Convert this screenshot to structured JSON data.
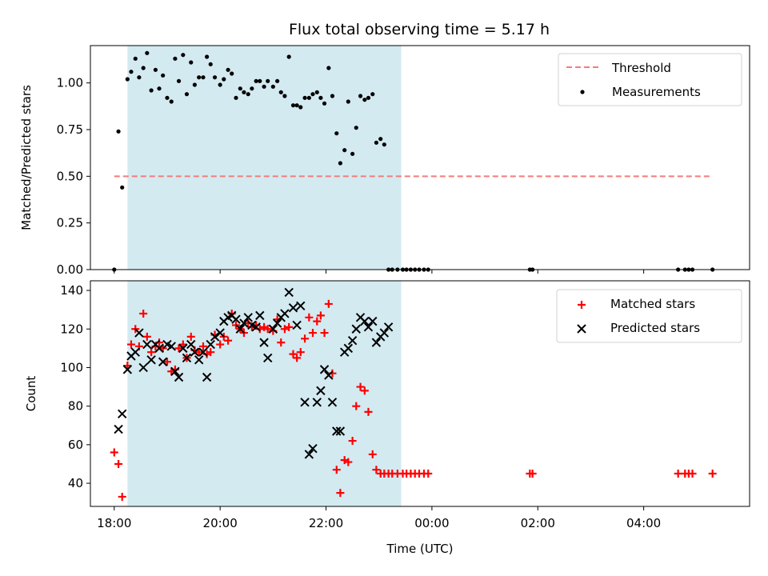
{
  "title": "Flux total observing time = 5.17 h",
  "x_tick_labels": [
    "18:00",
    "20:00",
    "22:00",
    "00:00",
    "02:00",
    "04:00"
  ],
  "x_ticks_hours": [
    18,
    20,
    22,
    24,
    26,
    28
  ],
  "x_range_hours": [
    17.55,
    30.0
  ],
  "shaded_interval_hours": [
    18.25,
    23.42
  ],
  "colors": {
    "shade": "#d3eaf1",
    "threshold": "#f47c7c",
    "measurement": "#000000",
    "matched": "#ff0000",
    "predicted": "#000000"
  },
  "chart_data": [
    {
      "type": "scatter",
      "title": "Flux total observing time = 5.17 h",
      "xlabel": "",
      "ylabel": "Matched/Predicted stars",
      "ylim": [
        0,
        1.2
      ],
      "yticks": [
        0.0,
        0.25,
        0.5,
        0.75,
        1.0
      ],
      "ytick_labels": [
        "0.00",
        "0.25",
        "0.50",
        "0.75",
        "1.00"
      ],
      "legend_position": "top-right",
      "legend": [
        "Threshold",
        "Measurements"
      ],
      "threshold": {
        "name": "Threshold",
        "value": 0.5,
        "x_range": [
          18.0,
          29.3
        ]
      },
      "series": [
        {
          "name": "Measurements",
          "x": [
            18.0,
            18.08,
            18.15,
            18.25,
            18.32,
            18.4,
            18.47,
            18.55,
            18.62,
            18.7,
            18.78,
            18.85,
            18.92,
            19.0,
            19.08,
            19.15,
            19.22,
            19.3,
            19.37,
            19.45,
            19.52,
            19.6,
            19.68,
            19.75,
            19.82,
            19.9,
            20.0,
            20.07,
            20.15,
            20.22,
            20.3,
            20.38,
            20.45,
            20.53,
            20.6,
            20.68,
            20.75,
            20.83,
            20.9,
            21.0,
            21.08,
            21.15,
            21.22,
            21.3,
            21.38,
            21.45,
            21.52,
            21.6,
            21.68,
            21.75,
            21.83,
            21.9,
            21.97,
            22.05,
            22.12,
            22.2,
            22.27,
            22.35,
            22.42,
            22.5,
            22.57,
            22.65,
            22.73,
            22.8,
            22.88,
            22.95,
            23.03,
            23.1,
            23.18,
            23.25,
            23.35,
            23.45,
            23.52,
            23.6,
            23.68,
            23.76,
            23.85,
            23.93,
            25.85,
            25.9,
            28.65,
            28.78,
            28.85,
            28.92,
            29.3
          ],
          "y": [
            0.0,
            0.74,
            0.44,
            1.02,
            1.06,
            1.13,
            1.03,
            1.08,
            1.16,
            0.96,
            1.07,
            0.97,
            1.04,
            0.92,
            0.9,
            1.13,
            1.01,
            1.15,
            0.94,
            1.11,
            0.99,
            1.03,
            1.03,
            1.14,
            1.1,
            1.03,
            0.99,
            1.02,
            1.07,
            1.05,
            0.92,
            0.97,
            0.95,
            0.94,
            0.97,
            1.01,
            1.01,
            0.98,
            1.01,
            0.98,
            1.01,
            0.95,
            0.93,
            1.14,
            0.88,
            0.88,
            0.87,
            0.92,
            0.92,
            0.94,
            0.95,
            0.92,
            0.89,
            1.08,
            0.93,
            0.73,
            0.57,
            0.64,
            0.9,
            0.62,
            0.76,
            0.93,
            0.91,
            0.92,
            0.94,
            0.68,
            0.7,
            0.67,
            0.0,
            0.0,
            0.0,
            0.0,
            0.0,
            0.0,
            0.0,
            0.0,
            0.0,
            0.0,
            0.0,
            0.0,
            0.0,
            0.0,
            0.0,
            0.0,
            0.0
          ]
        }
      ]
    },
    {
      "type": "scatter",
      "title": "",
      "xlabel": "Time (UTC)",
      "ylabel": "Count",
      "ylim": [
        28,
        145
      ],
      "yticks": [
        40,
        60,
        80,
        100,
        120,
        140
      ],
      "ytick_labels": [
        "40",
        "60",
        "80",
        "100",
        "120",
        "140"
      ],
      "legend_position": "top-right",
      "legend": [
        "Matched stars",
        "Predicted stars"
      ],
      "series": [
        {
          "name": "Matched stars",
          "marker": "plus",
          "x": [
            18.0,
            18.08,
            18.15,
            18.25,
            18.32,
            18.4,
            18.47,
            18.55,
            18.62,
            18.7,
            18.78,
            18.85,
            18.92,
            19.0,
            19.08,
            19.15,
            19.22,
            19.3,
            19.37,
            19.45,
            19.52,
            19.6,
            19.68,
            19.75,
            19.82,
            19.9,
            20.0,
            20.07,
            20.15,
            20.22,
            20.3,
            20.38,
            20.45,
            20.53,
            20.6,
            20.68,
            20.75,
            20.83,
            20.9,
            21.0,
            21.08,
            21.15,
            21.22,
            21.3,
            21.38,
            21.45,
            21.52,
            21.6,
            21.68,
            21.75,
            21.83,
            21.9,
            21.97,
            22.05,
            22.12,
            22.2,
            22.27,
            22.35,
            22.42,
            22.5,
            22.57,
            22.65,
            22.73,
            22.8,
            22.88,
            22.95,
            23.03,
            23.1,
            23.18,
            23.25,
            23.35,
            23.45,
            23.52,
            23.6,
            23.68,
            23.76,
            23.85,
            23.93,
            25.85,
            25.9,
            28.65,
            28.78,
            28.85,
            28.92,
            29.3
          ],
          "y": [
            56,
            50,
            33,
            101,
            112,
            120,
            111,
            128,
            116,
            108,
            111,
            113,
            110,
            103,
            98,
            99,
            110,
            112,
            105,
            116,
            109,
            108,
            111,
            107,
            108,
            117,
            112,
            116,
            114,
            128,
            122,
            120,
            118,
            123,
            121,
            122,
            120,
            121,
            120,
            119,
            125,
            113,
            120,
            121,
            107,
            105,
            108,
            115,
            126,
            118,
            124,
            127,
            118,
            133,
            97,
            47,
            35,
            52,
            51,
            62,
            80,
            90,
            88,
            77,
            55,
            47,
            45,
            45,
            45,
            45,
            45,
            45,
            45,
            45,
            45,
            45,
            45,
            45,
            45,
            45,
            45,
            45,
            45,
            45,
            45
          ]
        },
        {
          "name": "Predicted stars",
          "marker": "x",
          "x": [
            18.08,
            18.15,
            18.25,
            18.32,
            18.4,
            18.47,
            18.55,
            18.62,
            18.7,
            18.78,
            18.85,
            18.92,
            19.0,
            19.08,
            19.15,
            19.22,
            19.3,
            19.37,
            19.45,
            19.52,
            19.6,
            19.68,
            19.75,
            19.82,
            19.9,
            20.0,
            20.07,
            20.15,
            20.22,
            20.3,
            20.38,
            20.45,
            20.53,
            20.6,
            20.68,
            20.75,
            20.83,
            20.9,
            21.0,
            21.08,
            21.15,
            21.22,
            21.3,
            21.38,
            21.45,
            21.52,
            21.6,
            21.68,
            21.75,
            21.83,
            21.9,
            21.97,
            22.05,
            22.12,
            22.2,
            22.27,
            22.35,
            22.42,
            22.5,
            22.57,
            22.65,
            22.73,
            22.8,
            22.88,
            22.95,
            23.03,
            23.1,
            23.18
          ],
          "y": [
            68,
            76,
            99,
            106,
            108,
            118,
            100,
            112,
            104,
            112,
            110,
            103,
            112,
            111,
            98,
            95,
            110,
            105,
            112,
            108,
            104,
            108,
            95,
            112,
            116,
            118,
            124,
            126,
            127,
            125,
            120,
            123,
            126,
            122,
            121,
            127,
            113,
            105,
            120,
            123,
            126,
            128,
            139,
            131,
            122,
            132,
            82,
            55,
            58,
            82,
            88,
            99,
            96,
            82,
            67,
            67,
            108,
            110,
            114,
            120,
            126,
            124,
            121,
            124,
            113,
            116,
            118,
            121
          ]
        }
      ]
    }
  ]
}
